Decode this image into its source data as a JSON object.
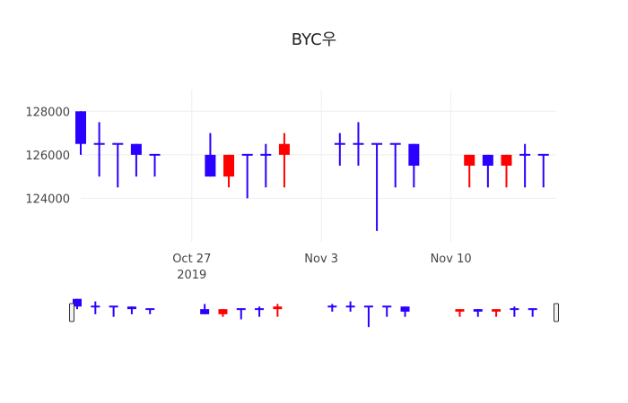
{
  "chart_data": {
    "type": "candlestick",
    "title": "BYC우",
    "xlabel": "",
    "ylabel": "",
    "ylim": [
      122000,
      129000
    ],
    "x_range": [
      "2019-10-21",
      "2019-11-16"
    ],
    "y_ticks": [
      {
        "label": "124000",
        "value": 124000
      },
      {
        "label": "126000",
        "value": 126000
      },
      {
        "label": "128000",
        "value": 128000
      }
    ],
    "x_ticks": [
      {
        "label": "Oct 27",
        "sub": "2019",
        "date": "2019-10-27"
      },
      {
        "label": "Nov 3",
        "sub": "",
        "date": "2019-11-03"
      },
      {
        "label": "Nov 10",
        "sub": "",
        "date": "2019-11-10"
      }
    ],
    "grid": true,
    "legend": "none",
    "rangeslider": true,
    "colors": {
      "increasing": "#ff0000",
      "decreasing": "#2a00ff"
    },
    "candles": [
      {
        "date": "2019-10-21",
        "open": 128000,
        "high": 128000,
        "low": 126000,
        "close": 126500
      },
      {
        "date": "2019-10-22",
        "open": 126500,
        "high": 127500,
        "low": 125000,
        "close": 126500
      },
      {
        "date": "2019-10-23",
        "open": 126500,
        "high": 126500,
        "low": 124500,
        "close": 126500
      },
      {
        "date": "2019-10-24",
        "open": 126500,
        "high": 126500,
        "low": 125000,
        "close": 126000
      },
      {
        "date": "2019-10-25",
        "open": 126000,
        "high": 126000,
        "low": 125000,
        "close": 126000
      },
      {
        "date": "2019-10-28",
        "open": 126000,
        "high": 127000,
        "low": 125000,
        "close": 125000
      },
      {
        "date": "2019-10-29",
        "open": 125000,
        "high": 126000,
        "low": 124500,
        "close": 126000
      },
      {
        "date": "2019-10-30",
        "open": 126000,
        "high": 126000,
        "low": 124000,
        "close": 126000
      },
      {
        "date": "2019-10-31",
        "open": 126000,
        "high": 126500,
        "low": 124500,
        "close": 126000
      },
      {
        "date": "2019-11-01",
        "open": 126000,
        "high": 127000,
        "low": 124500,
        "close": 126500
      },
      {
        "date": "2019-11-04",
        "open": 126500,
        "high": 127000,
        "low": 125500,
        "close": 126500
      },
      {
        "date": "2019-11-05",
        "open": 126500,
        "high": 127500,
        "low": 125500,
        "close": 126500
      },
      {
        "date": "2019-11-06",
        "open": 126500,
        "high": 126500,
        "low": 122500,
        "close": 126500
      },
      {
        "date": "2019-11-07",
        "open": 126500,
        "high": 126500,
        "low": 124500,
        "close": 126500
      },
      {
        "date": "2019-11-08",
        "open": 126500,
        "high": 126500,
        "low": 124500,
        "close": 125500
      },
      {
        "date": "2019-11-11",
        "open": 125500,
        "high": 126000,
        "low": 124500,
        "close": 126000
      },
      {
        "date": "2019-11-12",
        "open": 126000,
        "high": 126000,
        "low": 124500,
        "close": 125500
      },
      {
        "date": "2019-11-13",
        "open": 125500,
        "high": 126000,
        "low": 124500,
        "close": 126000
      },
      {
        "date": "2019-11-14",
        "open": 126000,
        "high": 126500,
        "low": 124500,
        "close": 126000
      },
      {
        "date": "2019-11-15",
        "open": 126000,
        "high": 126000,
        "low": 124500,
        "close": 126000
      }
    ]
  }
}
